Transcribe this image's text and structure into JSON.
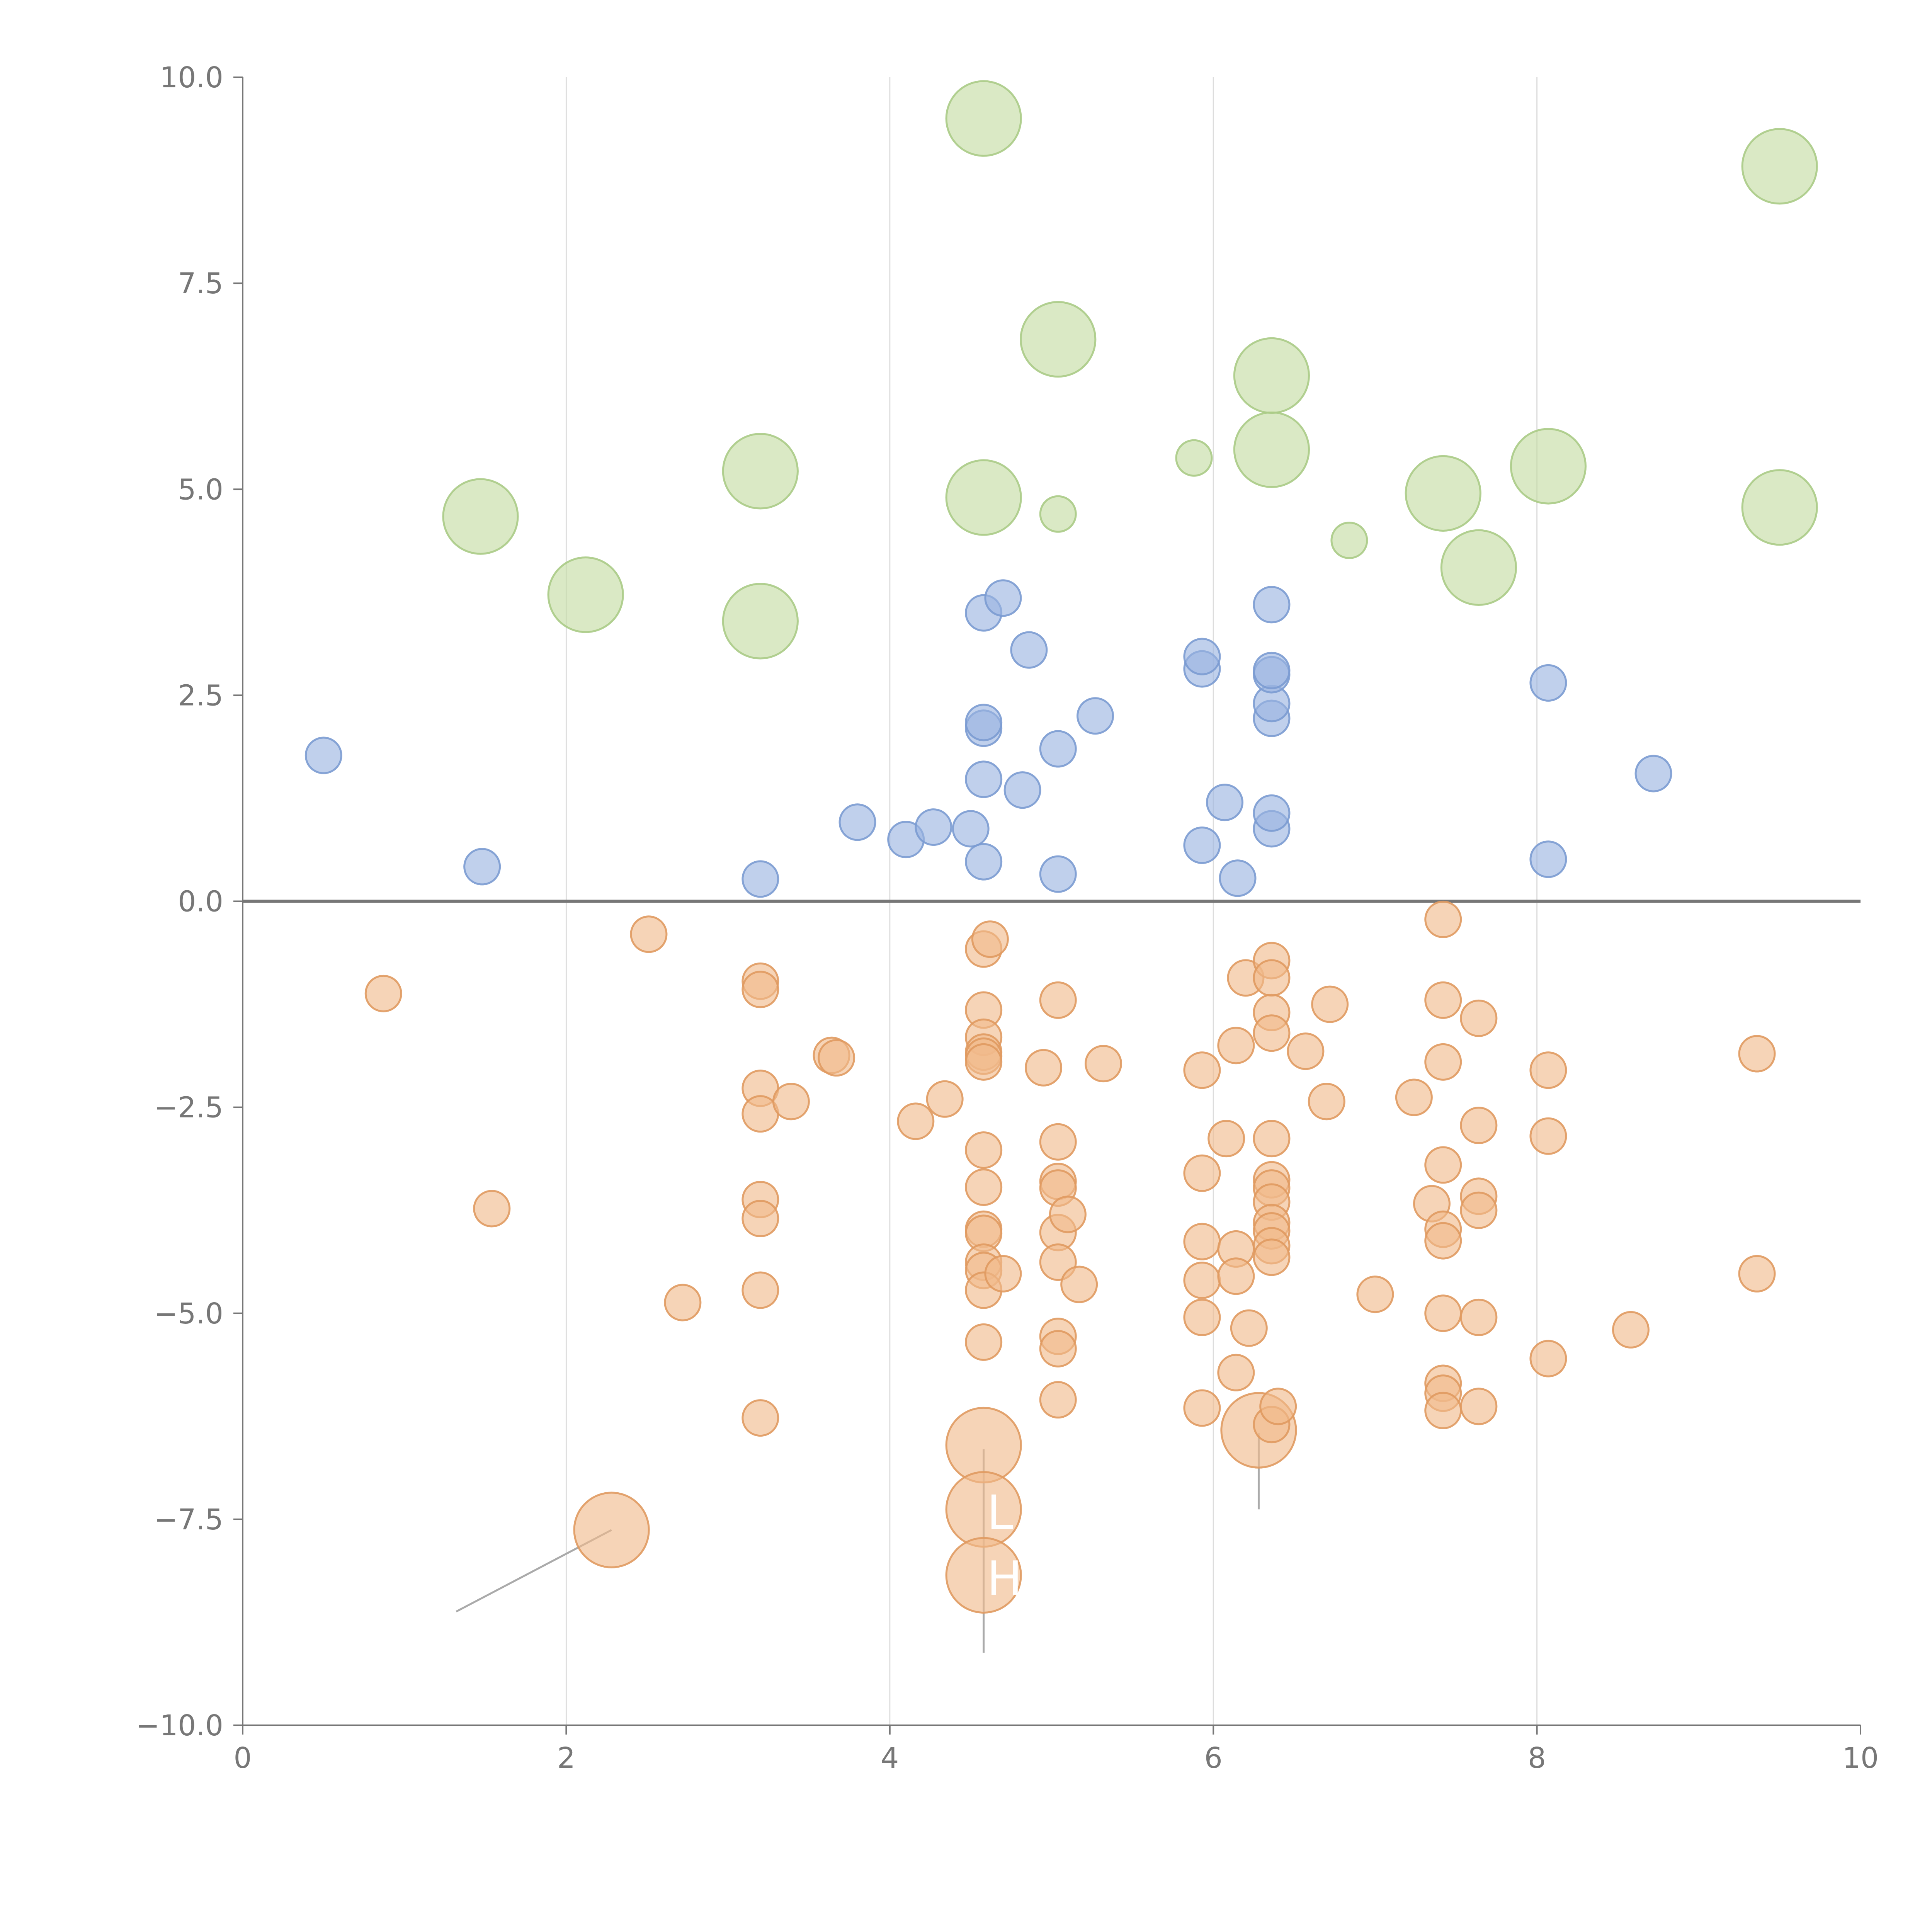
{
  "chart_data": {
    "type": "scatter",
    "title": "",
    "xlabel": "",
    "ylabel": "",
    "xlim": [
      0,
      10
    ],
    "ylim": [
      -10,
      10
    ],
    "x_ticks": [
      0,
      2,
      4,
      6,
      8,
      10
    ],
    "y_ticks": [
      -10,
      -7.5,
      -5,
      -2.5,
      0,
      2.5,
      5,
      7.5,
      10
    ],
    "x_tick_labels": [
      "0",
      "2",
      "4",
      "6",
      "8",
      "10"
    ],
    "y_tick_labels": [
      "−10.0",
      "−7.5",
      "−5.0",
      "−2.5",
      "0.0",
      "2.5",
      "5.0",
      "7.5",
      "10.0"
    ],
    "grid": "vertical lines at x ticks",
    "reference_line_y": 0,
    "legend": "none",
    "series": [
      {
        "color": "#99b3e0",
        "stroke": "#7b9bd1",
        "points": [
          [
            0.5,
            1.77,
            1
          ],
          [
            1.48,
            0.42,
            1
          ],
          [
            3.2,
            0.27,
            1
          ],
          [
            3.8,
            0.96,
            1
          ],
          [
            4.1,
            0.75,
            1
          ],
          [
            4.27,
            0.9,
            1
          ],
          [
            4.5,
            0.88,
            1
          ],
          [
            4.58,
            0.48,
            1
          ],
          [
            4.58,
            1.48,
            1
          ],
          [
            4.58,
            2.1,
            1
          ],
          [
            4.58,
            2.17,
            1
          ],
          [
            4.58,
            3.5,
            1
          ],
          [
            4.7,
            3.68,
            1
          ],
          [
            4.82,
            1.35,
            1
          ],
          [
            4.86,
            3.05,
            1
          ],
          [
            5.04,
            0.33,
            1
          ],
          [
            5.04,
            1.85,
            1
          ],
          [
            5.27,
            2.25,
            1
          ],
          [
            5.93,
            0.68,
            1
          ],
          [
            5.93,
            2.82,
            1
          ],
          [
            5.93,
            2.97,
            1
          ],
          [
            6.07,
            1.2,
            1
          ],
          [
            6.15,
            0.28,
            1
          ],
          [
            6.36,
            0.88,
            1
          ],
          [
            6.36,
            1.07,
            1
          ],
          [
            6.36,
            2.22,
            1
          ],
          [
            6.36,
            2.4,
            1
          ],
          [
            6.36,
            2.75,
            1
          ],
          [
            6.36,
            2.8,
            1
          ],
          [
            6.36,
            3.6,
            1
          ],
          [
            8.07,
            0.51,
            1
          ],
          [
            8.07,
            2.65,
            1
          ],
          [
            8.72,
            1.55,
            1
          ]
        ]
      },
      {
        "color": "#c4dba2",
        "stroke": "#aacb86",
        "points": [
          [
            1.47,
            4.67,
            2.1
          ],
          [
            2.12,
            3.72,
            2.1
          ],
          [
            3.2,
            3.4,
            2.1
          ],
          [
            3.2,
            5.22,
            2.1
          ],
          [
            4.58,
            4.9,
            2.1
          ],
          [
            4.58,
            9.5,
            2.1
          ],
          [
            5.04,
            4.7,
            1
          ],
          [
            5.04,
            6.82,
            2.1
          ],
          [
            5.88,
            5.38,
            1
          ],
          [
            6.36,
            5.48,
            2.1
          ],
          [
            6.36,
            6.38,
            2.1
          ],
          [
            6.84,
            4.38,
            1
          ],
          [
            7.42,
            4.95,
            2.1
          ],
          [
            7.64,
            4.05,
            2.1
          ],
          [
            8.07,
            5.28,
            2.1
          ],
          [
            9.5,
            4.78,
            2.1
          ],
          [
            9.5,
            8.92,
            2.1
          ]
        ]
      },
      {
        "color": "#f0b98a",
        "stroke": "#e09a60",
        "points": [
          [
            0.87,
            -1.12,
            1
          ],
          [
            1.54,
            -3.73,
            1
          ],
          [
            2.51,
            -0.4,
            1
          ],
          [
            2.72,
            -4.87,
            1
          ],
          [
            2.28,
            -7.63,
            2.1
          ],
          [
            3.2,
            -0.97,
            1
          ],
          [
            3.2,
            -1.07,
            1
          ],
          [
            3.2,
            -2.27,
            1
          ],
          [
            3.2,
            -2.58,
            1
          ],
          [
            3.2,
            -3.62,
            1
          ],
          [
            3.2,
            -3.85,
            1
          ],
          [
            3.2,
            -4.72,
            1
          ],
          [
            3.2,
            -6.27,
            1
          ],
          [
            3.39,
            -2.43,
            1
          ],
          [
            3.64,
            -1.87,
            1
          ],
          [
            3.67,
            -1.9,
            1
          ],
          [
            4.16,
            -2.67,
            1
          ],
          [
            4.34,
            -2.4,
            1
          ],
          [
            4.58,
            -0.58,
            1
          ],
          [
            4.62,
            -0.46,
            1
          ],
          [
            4.58,
            -1.32,
            1
          ],
          [
            4.58,
            -1.65,
            1
          ],
          [
            4.58,
            -1.83,
            1
          ],
          [
            4.58,
            -1.88,
            1
          ],
          [
            4.58,
            -1.95,
            1
          ],
          [
            4.58,
            -3.02,
            1
          ],
          [
            4.58,
            -3.47,
            1
          ],
          [
            4.58,
            -3.98,
            1
          ],
          [
            4.58,
            -4.03,
            1
          ],
          [
            4.58,
            -4.38,
            1
          ],
          [
            4.58,
            -4.48,
            1
          ],
          [
            4.58,
            -4.72,
            1
          ],
          [
            4.58,
            -5.35,
            1
          ],
          [
            4.7,
            -4.52,
            1
          ],
          [
            4.58,
            -6.6,
            2.1
          ],
          [
            4.58,
            -7.38,
            2.1
          ],
          [
            4.58,
            -8.18,
            2.1
          ],
          [
            4.95,
            -2.02,
            1
          ],
          [
            5.04,
            -1.2,
            1
          ],
          [
            5.04,
            -2.92,
            1
          ],
          [
            5.04,
            -3.4,
            1
          ],
          [
            5.04,
            -3.48,
            1
          ],
          [
            5.04,
            -4.02,
            1
          ],
          [
            5.04,
            -4.38,
            1
          ],
          [
            5.04,
            -5.28,
            1
          ],
          [
            5.04,
            -5.43,
            1
          ],
          [
            5.04,
            -6.05,
            1
          ],
          [
            5.1,
            -3.8,
            1
          ],
          [
            5.17,
            -4.65,
            1
          ],
          [
            5.32,
            -1.97,
            1
          ],
          [
            5.93,
            -2.05,
            1
          ],
          [
            5.93,
            -3.3,
            1
          ],
          [
            5.93,
            -4.13,
            1
          ],
          [
            5.93,
            -4.6,
            1
          ],
          [
            5.93,
            -5.05,
            1
          ],
          [
            5.93,
            -6.15,
            1
          ],
          [
            6.08,
            -2.88,
            1
          ],
          [
            6.14,
            -1.75,
            1
          ],
          [
            6.14,
            -4.22,
            1
          ],
          [
            6.14,
            -4.55,
            1
          ],
          [
            6.14,
            -5.72,
            1
          ],
          [
            6.2,
            -0.93,
            1
          ],
          [
            6.22,
            -5.18,
            1
          ],
          [
            6.28,
            -6.42,
            2.1
          ],
          [
            6.36,
            -0.72,
            1
          ],
          [
            6.36,
            -0.93,
            1
          ],
          [
            6.36,
            -1.35,
            1
          ],
          [
            6.36,
            -1.6,
            1
          ],
          [
            6.36,
            -2.88,
            1
          ],
          [
            6.36,
            -3.38,
            1
          ],
          [
            6.36,
            -3.48,
            1
          ],
          [
            6.36,
            -3.65,
            1
          ],
          [
            6.36,
            -3.9,
            1
          ],
          [
            6.36,
            -4.0,
            1
          ],
          [
            6.36,
            -4.18,
            1
          ],
          [
            6.36,
            -4.32,
            1
          ],
          [
            6.36,
            -6.35,
            1
          ],
          [
            6.4,
            -6.13,
            1
          ],
          [
            6.57,
            -1.82,
            1
          ],
          [
            6.7,
            -2.43,
            1
          ],
          [
            6.72,
            -1.25,
            1
          ],
          [
            7.0,
            -4.77,
            1
          ],
          [
            7.24,
            -2.38,
            1
          ],
          [
            7.35,
            -3.67,
            1
          ],
          [
            7.42,
            -0.22,
            1
          ],
          [
            7.42,
            -1.2,
            1
          ],
          [
            7.42,
            -1.95,
            1
          ],
          [
            7.42,
            -3.2,
            1
          ],
          [
            7.42,
            -3.98,
            1
          ],
          [
            7.42,
            -4.12,
            1
          ],
          [
            7.42,
            -5.0,
            1
          ],
          [
            7.42,
            -5.85,
            1
          ],
          [
            7.42,
            -5.97,
            1
          ],
          [
            7.42,
            -6.18,
            1
          ],
          [
            7.64,
            -1.42,
            1
          ],
          [
            7.64,
            -2.72,
            1
          ],
          [
            7.64,
            -3.58,
            1
          ],
          [
            7.64,
            -3.75,
            1
          ],
          [
            7.64,
            -5.05,
            1
          ],
          [
            7.64,
            -6.13,
            1
          ],
          [
            8.07,
            -2.05,
            1
          ],
          [
            8.07,
            -2.85,
            1
          ],
          [
            8.07,
            -5.55,
            1
          ],
          [
            8.58,
            -5.2,
            1
          ],
          [
            9.36,
            -1.85,
            1
          ],
          [
            9.36,
            -4.52,
            1
          ]
        ]
      }
    ],
    "annotations": [
      {
        "text": "L",
        "x": 4.6,
        "y": -7.42
      },
      {
        "text": "H",
        "x": 4.6,
        "y": -8.22
      }
    ]
  }
}
